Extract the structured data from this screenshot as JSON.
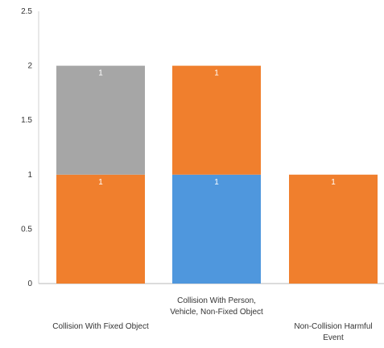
{
  "chart_data": {
    "type": "bar",
    "stacked": true,
    "title": "",
    "xlabel": "",
    "ylabel": "",
    "ylim": [
      0,
      2.5
    ],
    "yticks": [
      "0",
      "0.5",
      "1",
      "1.5",
      "2",
      "2.5"
    ],
    "grid": false,
    "legend": "none",
    "categories": [
      [
        "Collision With Fixed Object"
      ],
      [
        "Collision With Person,",
        "Vehicle, Non-Fixed Object"
      ],
      [
        "Non-Collision Harmful",
        "Event"
      ]
    ],
    "segments": [
      [
        {
          "value": 1,
          "label": "1",
          "color": "#f07f2d"
        },
        {
          "value": 1,
          "label": "1",
          "color": "#a6a6a6"
        }
      ],
      [
        {
          "value": 1,
          "label": "1",
          "color": "#4f97dd"
        },
        {
          "value": 1,
          "label": "1",
          "color": "#f07f2d"
        }
      ],
      [
        {
          "value": 1,
          "label": "1",
          "color": "#f07f2d"
        }
      ]
    ]
  }
}
